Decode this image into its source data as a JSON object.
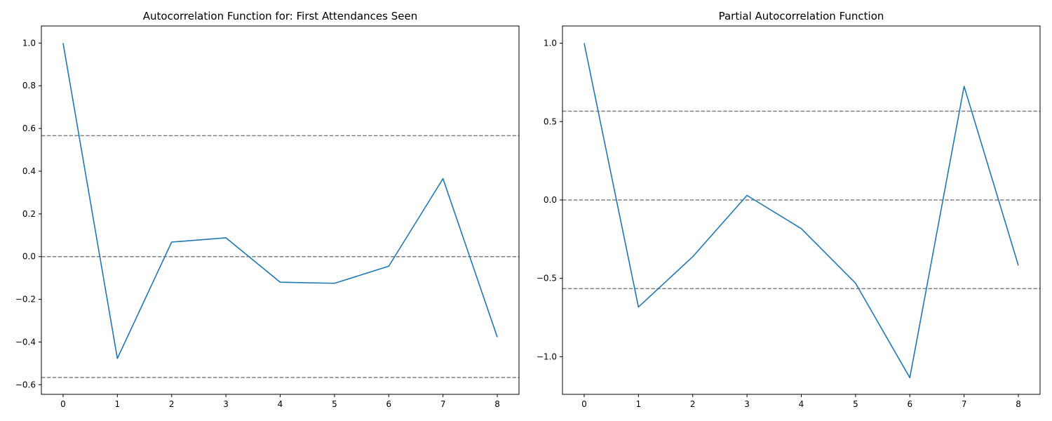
{
  "chart_data": [
    {
      "type": "line",
      "title": "Autocorrelation Function for: First Attendances Seen",
      "xlabel": "",
      "ylabel": "",
      "x": [
        0,
        1,
        2,
        3,
        4,
        5,
        6,
        7,
        8
      ],
      "series": [
        {
          "values": [
            1.0,
            -0.477,
            0.068,
            0.088,
            -0.12,
            -0.125,
            -0.045,
            0.365,
            -0.377
          ],
          "color": "#1f77b4"
        }
      ],
      "reference_lines": [
        {
          "y": 0.566,
          "style": "dashed",
          "color": "#808080"
        },
        {
          "y": 0.0,
          "style": "dashed",
          "color": "#808080"
        },
        {
          "y": -0.566,
          "style": "dashed",
          "color": "#808080"
        }
      ],
      "xlim": [
        -0.4,
        8.4
      ],
      "ylim": [
        -0.645,
        1.08
      ],
      "xticks": [
        0,
        1,
        2,
        3,
        4,
        5,
        6,
        7,
        8
      ],
      "xtick_labels": [
        "0",
        "1",
        "2",
        "3",
        "4",
        "5",
        "6",
        "7",
        "8"
      ],
      "yticks": [
        1.0,
        0.8,
        0.6,
        0.4,
        0.2,
        0.0,
        -0.2,
        -0.4,
        -0.6
      ],
      "ytick_labels": [
        "1.0",
        "0.8",
        "0.6",
        "0.4",
        "0.2",
        "0.0",
        "−0.2",
        "−0.4",
        "−0.6"
      ],
      "grid": false,
      "legend": "none"
    },
    {
      "type": "line",
      "title": "Partial Autocorrelation Function",
      "xlabel": "",
      "ylabel": "",
      "x": [
        0,
        1,
        2,
        3,
        4,
        5,
        6,
        7,
        8
      ],
      "series": [
        {
          "values": [
            1.0,
            -0.683,
            -0.362,
            0.029,
            -0.183,
            -0.531,
            -1.134,
            0.725,
            -0.418
          ],
          "color": "#1f77b4"
        }
      ],
      "reference_lines": [
        {
          "y": 0.566,
          "style": "dashed",
          "color": "#808080"
        },
        {
          "y": 0.0,
          "style": "dashed",
          "color": "#808080"
        },
        {
          "y": -0.566,
          "style": "dashed",
          "color": "#808080"
        }
      ],
      "xlim": [
        -0.4,
        8.4
      ],
      "ylim": [
        -1.24,
        1.11
      ],
      "xticks": [
        0,
        1,
        2,
        3,
        4,
        5,
        6,
        7,
        8
      ],
      "xtick_labels": [
        "0",
        "1",
        "2",
        "3",
        "4",
        "5",
        "6",
        "7",
        "8"
      ],
      "yticks": [
        1.0,
        0.5,
        0.0,
        -0.5,
        -1.0
      ],
      "ytick_labels": [
        "1.0",
        "0.5",
        "0.0",
        "−0.5",
        "−1.0"
      ],
      "grid": false,
      "legend": "none"
    }
  ]
}
